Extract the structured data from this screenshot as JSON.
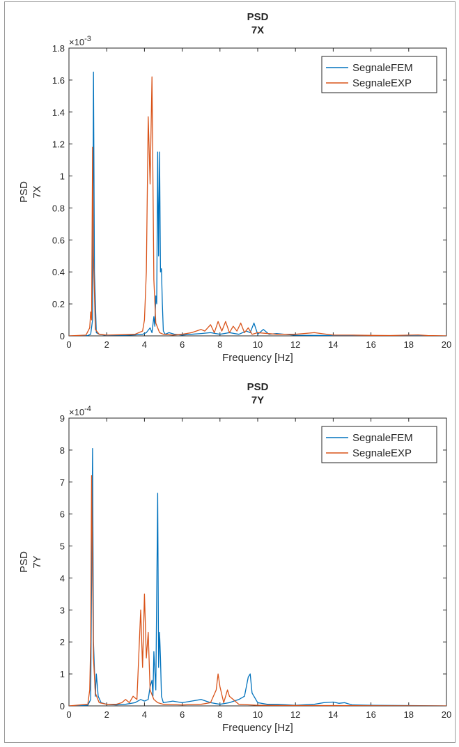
{
  "chart_data": [
    {
      "type": "line",
      "title": "PSD",
      "subtitle": "7X",
      "xlabel": "Frequency [Hz]",
      "ylabel": [
        "PSD",
        "7X"
      ],
      "xlim": [
        0,
        20
      ],
      "ylim": [
        0,
        1.8
      ],
      "xticks": [
        "0",
        "2",
        "4",
        "6",
        "8",
        "10",
        "12",
        "14",
        "16",
        "18",
        "20"
      ],
      "yticks": [
        "0",
        "0.2",
        "0.4",
        "0.6",
        "0.8",
        "1",
        "1.2",
        "1.4",
        "1.6",
        "1.8"
      ],
      "y_multiplier": "×10",
      "y_exponent": "-3",
      "grid": false,
      "legend_position": "top-right",
      "series": [
        {
          "name": "SegnaleFEM",
          "color": "#0072BD",
          "points": [
            [
              0,
              0
            ],
            [
              1.0,
              0.002
            ],
            [
              1.15,
              0.01
            ],
            [
              1.25,
              0.1
            ],
            [
              1.3,
              1.65
            ],
            [
              1.35,
              0.4
            ],
            [
              1.45,
              0.02
            ],
            [
              1.6,
              0.01
            ],
            [
              2.0,
              0.003
            ],
            [
              2.5,
              0.004
            ],
            [
              3.0,
              0.004
            ],
            [
              3.5,
              0.006
            ],
            [
              3.9,
              0.01
            ],
            [
              4.1,
              0.02
            ],
            [
              4.3,
              0.05
            ],
            [
              4.4,
              0.02
            ],
            [
              4.5,
              0.12
            ],
            [
              4.55,
              0.06
            ],
            [
              4.6,
              0.25
            ],
            [
              4.65,
              0.2
            ],
            [
              4.7,
              1.15
            ],
            [
              4.75,
              0.5
            ],
            [
              4.8,
              1.15
            ],
            [
              4.85,
              0.4
            ],
            [
              4.9,
              0.42
            ],
            [
              4.95,
              0.2
            ],
            [
              5.0,
              0.03
            ],
            [
              5.1,
              0.01
            ],
            [
              5.3,
              0.02
            ],
            [
              5.6,
              0.01
            ],
            [
              6.0,
              0.005
            ],
            [
              6.5,
              0.01
            ],
            [
              7.0,
              0.015
            ],
            [
              7.5,
              0.02
            ],
            [
              8.0,
              0.01
            ],
            [
              8.5,
              0.02
            ],
            [
              9.0,
              0.01
            ],
            [
              9.4,
              0.03
            ],
            [
              9.6,
              0.02
            ],
            [
              9.8,
              0.08
            ],
            [
              10.0,
              0.01
            ],
            [
              10.3,
              0.04
            ],
            [
              10.6,
              0.01
            ],
            [
              11.0,
              0.015
            ],
            [
              12.0,
              0.004
            ],
            [
              14.0,
              0.002
            ],
            [
              16.0,
              0.001
            ],
            [
              18.0,
              0.001
            ],
            [
              20,
              0
            ]
          ]
        },
        {
          "name": "SegnaleEXP",
          "color": "#D95319",
          "points": [
            [
              0,
              0
            ],
            [
              0.9,
              0.005
            ],
            [
              1.1,
              0.05
            ],
            [
              1.15,
              0.15
            ],
            [
              1.2,
              0.1
            ],
            [
              1.25,
              1.18
            ],
            [
              1.3,
              0.5
            ],
            [
              1.4,
              0.04
            ],
            [
              1.6,
              0.01
            ],
            [
              2.0,
              0.005
            ],
            [
              3.0,
              0.008
            ],
            [
              3.5,
              0.01
            ],
            [
              3.9,
              0.03
            ],
            [
              4.0,
              0.1
            ],
            [
              4.1,
              0.4
            ],
            [
              4.2,
              1.37
            ],
            [
              4.3,
              0.95
            ],
            [
              4.4,
              1.62
            ],
            [
              4.5,
              0.35
            ],
            [
              4.6,
              0.08
            ],
            [
              4.8,
              0.02
            ],
            [
              5.0,
              0.01
            ],
            [
              5.5,
              0.005
            ],
            [
              6.0,
              0.01
            ],
            [
              6.5,
              0.02
            ],
            [
              7.0,
              0.04
            ],
            [
              7.2,
              0.03
            ],
            [
              7.5,
              0.07
            ],
            [
              7.7,
              0.02
            ],
            [
              7.9,
              0.09
            ],
            [
              8.1,
              0.03
            ],
            [
              8.3,
              0.09
            ],
            [
              8.5,
              0.02
            ],
            [
              8.7,
              0.06
            ],
            [
              8.9,
              0.03
            ],
            [
              9.1,
              0.08
            ],
            [
              9.3,
              0.02
            ],
            [
              9.5,
              0.05
            ],
            [
              9.7,
              0.01
            ],
            [
              10.0,
              0.02
            ],
            [
              11.0,
              0.01
            ],
            [
              12.0,
              0.01
            ],
            [
              13.0,
              0.02
            ],
            [
              14.0,
              0.005
            ],
            [
              15.0,
              0.005
            ],
            [
              16.0,
              0.003
            ],
            [
              17.0,
              0.002
            ],
            [
              18.5,
              0.006
            ],
            [
              19.0,
              0.002
            ],
            [
              20,
              0
            ]
          ]
        }
      ]
    },
    {
      "type": "line",
      "title": "PSD",
      "subtitle": "7Y",
      "xlabel": "Frequency [Hz]",
      "ylabel": [
        "PSD",
        "7Y"
      ],
      "xlim": [
        0,
        20
      ],
      "ylim": [
        0,
        9
      ],
      "xticks": [
        "0",
        "2",
        "4",
        "6",
        "8",
        "10",
        "12",
        "14",
        "16",
        "18",
        "20"
      ],
      "yticks": [
        "0",
        "1",
        "2",
        "3",
        "4",
        "5",
        "6",
        "7",
        "8",
        "9"
      ],
      "y_multiplier": "×10",
      "y_exponent": "-4",
      "grid": false,
      "legend_position": "top-right",
      "series": [
        {
          "name": "SegnaleFEM",
          "color": "#0072BD",
          "points": [
            [
              0,
              0
            ],
            [
              1.0,
              0.02
            ],
            [
              1.15,
              0.2
            ],
            [
              1.25,
              8.05
            ],
            [
              1.3,
              2.0
            ],
            [
              1.4,
              0.3
            ],
            [
              1.45,
              1.0
            ],
            [
              1.55,
              0.3
            ],
            [
              1.7,
              0.1
            ],
            [
              2.0,
              0.05
            ],
            [
              2.5,
              0.03
            ],
            [
              3.0,
              0.05
            ],
            [
              3.5,
              0.1
            ],
            [
              3.8,
              0.2
            ],
            [
              4.0,
              0.15
            ],
            [
              4.2,
              0.2
            ],
            [
              4.3,
              0.6
            ],
            [
              4.4,
              0.8
            ],
            [
              4.45,
              0.3
            ],
            [
              4.5,
              1.7
            ],
            [
              4.6,
              0.5
            ],
            [
              4.7,
              6.65
            ],
            [
              4.75,
              1.2
            ],
            [
              4.8,
              2.3
            ],
            [
              4.85,
              1.5
            ],
            [
              4.9,
              0.3
            ],
            [
              5.0,
              0.1
            ],
            [
              5.5,
              0.15
            ],
            [
              6.0,
              0.1
            ],
            [
              6.5,
              0.15
            ],
            [
              7.0,
              0.2
            ],
            [
              7.5,
              0.1
            ],
            [
              8.0,
              0.05
            ],
            [
              8.5,
              0.1
            ],
            [
              9.0,
              0.2
            ],
            [
              9.3,
              0.3
            ],
            [
              9.5,
              0.9
            ],
            [
              9.6,
              1.0
            ],
            [
              9.7,
              0.4
            ],
            [
              10.0,
              0.1
            ],
            [
              10.5,
              0.05
            ],
            [
              11.0,
              0.05
            ],
            [
              12.0,
              0.02
            ],
            [
              13.0,
              0.05
            ],
            [
              13.5,
              0.1
            ],
            [
              14.0,
              0.12
            ],
            [
              14.3,
              0.08
            ],
            [
              14.6,
              0.1
            ],
            [
              15.0,
              0.03
            ],
            [
              16.0,
              0.02
            ],
            [
              18.0,
              0.01
            ],
            [
              20,
              0
            ]
          ]
        },
        {
          "name": "SegnaleEXP",
          "color": "#D95319",
          "points": [
            [
              0,
              0
            ],
            [
              1.0,
              0.05
            ],
            [
              1.1,
              0.5
            ],
            [
              1.15,
              2.0
            ],
            [
              1.2,
              7.2
            ],
            [
              1.3,
              1.5
            ],
            [
              1.4,
              0.4
            ],
            [
              1.6,
              0.1
            ],
            [
              2.0,
              0.05
            ],
            [
              2.5,
              0.05
            ],
            [
              2.8,
              0.1
            ],
            [
              3.0,
              0.2
            ],
            [
              3.2,
              0.1
            ],
            [
              3.4,
              0.3
            ],
            [
              3.6,
              0.2
            ],
            [
              3.8,
              3.0
            ],
            [
              3.9,
              1.2
            ],
            [
              4.0,
              3.5
            ],
            [
              4.1,
              1.5
            ],
            [
              4.2,
              2.3
            ],
            [
              4.3,
              0.5
            ],
            [
              4.5,
              0.2
            ],
            [
              4.7,
              0.1
            ],
            [
              5.0,
              0.05
            ],
            [
              6.0,
              0.03
            ],
            [
              7.0,
              0.05
            ],
            [
              7.5,
              0.1
            ],
            [
              7.8,
              0.5
            ],
            [
              7.9,
              1.0
            ],
            [
              8.0,
              0.6
            ],
            [
              8.2,
              0.1
            ],
            [
              8.4,
              0.5
            ],
            [
              8.5,
              0.3
            ],
            [
              8.7,
              0.2
            ],
            [
              9.0,
              0.05
            ],
            [
              10.0,
              0.02
            ],
            [
              12.0,
              0.01
            ],
            [
              14.0,
              0.01
            ],
            [
              16.0,
              0.005
            ],
            [
              18.0,
              0.003
            ],
            [
              20,
              0
            ]
          ]
        }
      ]
    }
  ]
}
